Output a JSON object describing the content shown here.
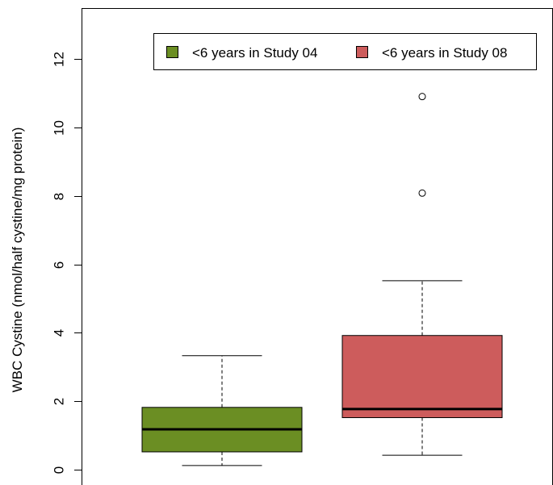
{
  "chart_data": {
    "type": "boxplot",
    "ylabel": "WBC Cystine (nmol/half cystine/mg protein)",
    "xlabel": "",
    "ylim": [
      -0.35,
      13.5
    ],
    "yticks": [
      0,
      2,
      4,
      6,
      8,
      10,
      12
    ],
    "grid": false,
    "legend_position": "top-right",
    "series": [
      {
        "name": "<6 years in Study 04",
        "color": "#6b8e23",
        "min": 0.12,
        "q1": 0.52,
        "median": 1.18,
        "q3": 1.82,
        "max": 3.33,
        "outliers": []
      },
      {
        "name": "<6 years in Study 08",
        "color": "#cd5c5c",
        "min": 0.42,
        "q1": 1.52,
        "median": 1.77,
        "q3": 3.92,
        "max": 5.52,
        "outliers": [
          8.08,
          10.9
        ]
      }
    ]
  }
}
